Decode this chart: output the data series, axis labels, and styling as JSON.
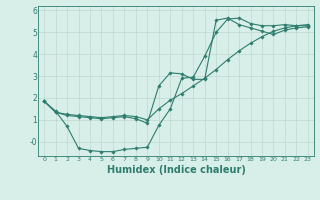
{
  "line1_x": [
    0,
    1,
    2,
    3,
    4,
    5,
    6,
    7,
    8,
    9,
    10,
    11,
    12,
    13,
    14,
    15,
    16,
    17,
    18,
    19,
    20,
    21,
    22,
    23
  ],
  "line1_y": [
    1.85,
    1.4,
    0.7,
    -0.3,
    -0.4,
    -0.45,
    -0.45,
    -0.35,
    -0.3,
    -0.25,
    0.75,
    1.5,
    2.9,
    2.95,
    3.9,
    5.0,
    5.6,
    5.65,
    5.4,
    5.3,
    5.3,
    5.35,
    5.3,
    5.3
  ],
  "line2_x": [
    0,
    1,
    2,
    3,
    4,
    5,
    6,
    7,
    8,
    9,
    10,
    11,
    12,
    13,
    14,
    15,
    16,
    17,
    18,
    19,
    20,
    21,
    22,
    23
  ],
  "line2_y": [
    1.85,
    1.35,
    1.2,
    1.15,
    1.1,
    1.05,
    1.1,
    1.15,
    1.05,
    0.85,
    2.55,
    3.15,
    3.1,
    2.85,
    2.85,
    5.55,
    5.65,
    5.35,
    5.2,
    5.05,
    4.9,
    5.1,
    5.2,
    5.25
  ],
  "line3_x": [
    0,
    1,
    2,
    3,
    4,
    5,
    6,
    7,
    8,
    9,
    10,
    11,
    12,
    13,
    14,
    15,
    16,
    17,
    18,
    19,
    20,
    21,
    22,
    23
  ],
  "line3_y": [
    1.85,
    1.35,
    1.25,
    1.2,
    1.15,
    1.1,
    1.15,
    1.2,
    1.15,
    1.0,
    1.5,
    1.9,
    2.2,
    2.55,
    2.9,
    3.3,
    3.75,
    4.15,
    4.5,
    4.8,
    5.05,
    5.2,
    5.3,
    5.35
  ],
  "line_color": "#2e7d6e",
  "bg_color": "#d8eee8",
  "grid_color": "#c0d8d0",
  "xlabel": "Humidex (Indice chaleur)",
  "xlabel_fontsize": 7,
  "yticks": [
    0,
    1,
    2,
    3,
    4,
    5,
    6
  ],
  "ytick_labels": [
    "-0",
    "1",
    "2",
    "3",
    "4",
    "5",
    "6"
  ],
  "xticks": [
    0,
    1,
    2,
    3,
    4,
    5,
    6,
    7,
    8,
    9,
    10,
    11,
    12,
    13,
    14,
    15,
    16,
    17,
    18,
    19,
    20,
    21,
    22,
    23
  ],
  "xtick_labels": [
    "0",
    "1",
    "2",
    "3",
    "4",
    "5",
    "6",
    "7",
    "8",
    "9",
    "10",
    "11",
    "12",
    "13",
    "14",
    "15",
    "16",
    "17",
    "18",
    "19",
    "20",
    "21",
    "22",
    "23"
  ],
  "ylim": [
    -0.65,
    6.2
  ],
  "xlim": [
    -0.5,
    23.5
  ],
  "marker": "D",
  "markersize": 1.8,
  "linewidth": 0.8
}
